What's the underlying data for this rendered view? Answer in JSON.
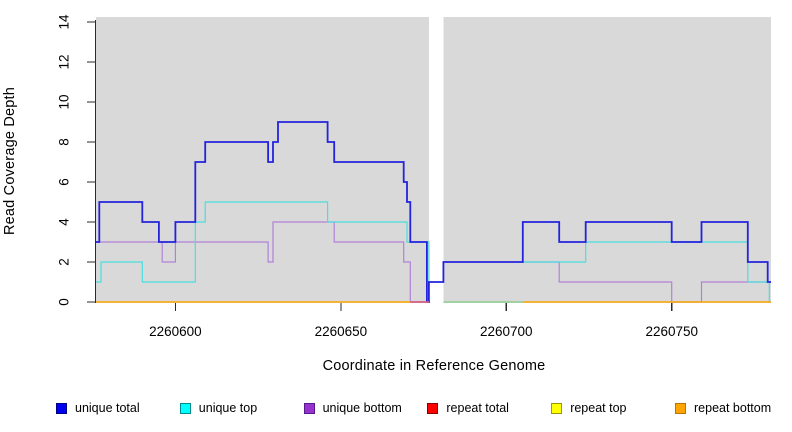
{
  "chart_data": {
    "type": "line",
    "subtype": "step-coverage-plot",
    "title": "",
    "xlabel": "Coordinate in Reference Genome",
    "ylabel": "Read Coverage Depth",
    "xlim": [
      2260576,
      2260780
    ],
    "ylim": [
      0,
      14
    ],
    "x_ticks": [
      2260600,
      2260650,
      2260700,
      2260750
    ],
    "y_ticks": [
      0,
      2,
      4,
      6,
      8,
      10,
      12,
      14
    ],
    "grid": "off",
    "panel_bg": "#D9D9D9",
    "gap_region": {
      "from": 2260676.6,
      "to": 2260681,
      "note": "white no-data band"
    },
    "legend_position": "bottom",
    "series": [
      {
        "name": "unique total",
        "color": "#2323DC",
        "legend_fill": "#0000EE",
        "legend_border": "#00008B",
        "width": 1.8,
        "segments": [
          [
            2260576,
            2260577,
            3
          ],
          [
            2260577,
            2260590,
            5
          ],
          [
            2260590,
            2260595,
            4
          ],
          [
            2260595,
            2260600,
            3
          ],
          [
            2260600,
            2260606,
            4
          ],
          [
            2260606,
            2260609,
            7
          ],
          [
            2260609,
            2260628,
            8
          ],
          [
            2260628,
            2260629.5,
            7
          ],
          [
            2260629.5,
            2260631,
            8
          ],
          [
            2260631,
            2260646,
            9
          ],
          [
            2260646,
            2260648,
            8
          ],
          [
            2260648,
            2260669,
            7
          ],
          [
            2260669,
            2260670,
            6
          ],
          [
            2260670,
            2260671,
            5
          ],
          [
            2260671,
            2260676,
            3
          ],
          [
            2260676,
            2260676.6,
            0
          ],
          [
            2260676.6,
            2260681,
            1
          ],
          [
            2260681,
            2260705,
            2
          ],
          [
            2260705,
            2260716,
            4
          ],
          [
            2260716,
            2260724,
            3
          ],
          [
            2260724,
            2260750,
            4
          ],
          [
            2260750,
            2260759,
            3
          ],
          [
            2260759,
            2260773,
            4
          ],
          [
            2260773,
            2260779,
            2
          ],
          [
            2260779,
            2260780,
            1
          ]
        ]
      },
      {
        "name": "unique top",
        "color": "#4ADEDE",
        "legend_fill": "#00FFFF",
        "legend_border": "#008B8B",
        "width": 1.2,
        "segments": [
          [
            2260576,
            2260577.5,
            1
          ],
          [
            2260577.5,
            2260590,
            2
          ],
          [
            2260590,
            2260606,
            1
          ],
          [
            2260606,
            2260609,
            4
          ],
          [
            2260609,
            2260646,
            5
          ],
          [
            2260646,
            2260670,
            4
          ],
          [
            2260670,
            2260676.6,
            3
          ],
          [
            2260676.6,
            2260677,
            0
          ],
          [
            2260705,
            2260724,
            2
          ],
          [
            2260724,
            2260773,
            3
          ],
          [
            2260773,
            2260779.5,
            1
          ],
          [
            2260779.5,
            2260780,
            0
          ]
        ]
      },
      {
        "name": "unique bottom",
        "color": "#B181D8",
        "legend_fill": "#9932CC",
        "legend_border": "#551A8B",
        "width": 1.2,
        "segments": [
          [
            2260576,
            2260596,
            3
          ],
          [
            2260596,
            2260600,
            2
          ],
          [
            2260600,
            2260628,
            3
          ],
          [
            2260628,
            2260629.5,
            2
          ],
          [
            2260629.5,
            2260648,
            4
          ],
          [
            2260648,
            2260669,
            3
          ],
          [
            2260669,
            2260671,
            2
          ],
          [
            2260671,
            2260676.6,
            0
          ],
          [
            2260705,
            2260716,
            2
          ],
          [
            2260716,
            2260750,
            1
          ],
          [
            2260750,
            2260759,
            0
          ],
          [
            2260759,
            2260780,
            1
          ]
        ]
      },
      {
        "name": "repeat total",
        "color": "#FF0000",
        "legend_fill": "#FF0000",
        "legend_border": "#8B0000",
        "width": 1.2,
        "segments": []
      },
      {
        "name": "repeat top",
        "color": "#FFFF00",
        "legend_fill": "#FFFF00",
        "legend_border": "#9B9B00",
        "width": 1.2,
        "segments": []
      },
      {
        "name": "repeat bottom",
        "color": "#FFA500",
        "legend_fill": "#FFA500",
        "legend_border": "#B87300",
        "width": 1.5,
        "segments": [
          [
            2260576,
            2260676.6,
            0
          ],
          [
            2260705,
            2260780,
            0
          ]
        ]
      }
    ],
    "blend_segments": [
      {
        "from": 2260671,
        "to": 2260676.6,
        "value": 0,
        "color": "#D1539C",
        "note": "unique-bottom over repeat-bottom overlap"
      },
      {
        "from": 2260681,
        "to": 2260705,
        "value": 0,
        "color": "#8FD08F",
        "note": "unique-top / repeat-top overlap at zero"
      }
    ]
  }
}
